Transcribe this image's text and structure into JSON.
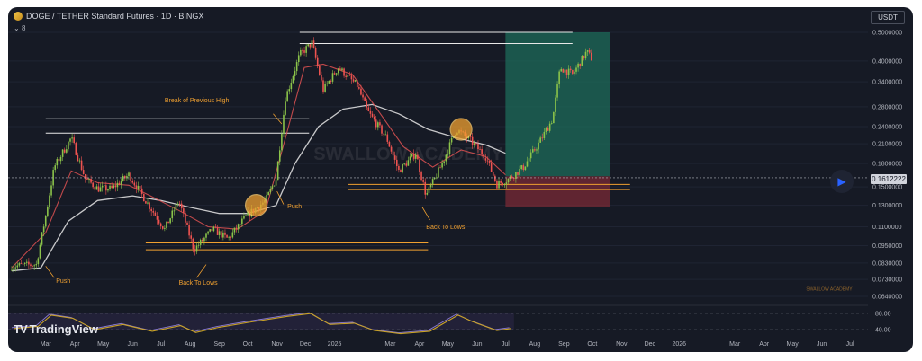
{
  "header": {
    "symbol_title": "DOGE / TETHER Standard Futures · 1D · BINGX",
    "indicator_toggle": "8"
  },
  "currency_button": "USDT",
  "current_price": "0.1612222",
  "watermark": "SWALLOW ACADEMY",
  "watermark_center": "SWALLOW ACADEMY",
  "logo_text": "TradingView",
  "chart_data": {
    "type": "line",
    "y_scale": "log",
    "price_axis_ticks": [
      "0.5000000",
      "0.4000000",
      "0.3400000",
      "0.2800000",
      "0.2400000",
      "0.2100000",
      "0.1800000",
      "0.1500000",
      "0.1300000",
      "0.1100000",
      "0.0950000",
      "0.0830000",
      "0.0730000",
      "0.0640000"
    ],
    "osc_axis_ticks": [
      "80.00",
      "40.00"
    ],
    "time_ticks": [
      {
        "label": "Mar",
        "d": "2024-03-01"
      },
      {
        "label": "Apr",
        "d": "2024-04-01"
      },
      {
        "label": "May",
        "d": "2024-05-01"
      },
      {
        "label": "Jun",
        "d": "2024-06-01"
      },
      {
        "label": "Jul",
        "d": "2024-07-01"
      },
      {
        "label": "Aug",
        "d": "2024-08-01"
      },
      {
        "label": "Sep",
        "d": "2024-09-01"
      },
      {
        "label": "Oct",
        "d": "2024-10-01"
      },
      {
        "label": "Nov",
        "d": "2024-11-01"
      },
      {
        "label": "Dec",
        "d": "2024-12-01"
      },
      {
        "label": "2025",
        "d": "2025-01-01"
      },
      {
        "label": "Mar",
        "d": "2025-03-01"
      },
      {
        "label": "Apr",
        "d": "2025-04-01"
      },
      {
        "label": "May",
        "d": "2025-05-01"
      },
      {
        "label": "Jun",
        "d": "2025-06-01"
      },
      {
        "label": "Jul",
        "d": "2025-07-01"
      },
      {
        "label": "Aug",
        "d": "2025-08-01"
      },
      {
        "label": "Sep",
        "d": "2025-09-01"
      },
      {
        "label": "Oct",
        "d": "2025-10-01"
      },
      {
        "label": "Nov",
        "d": "2025-11-01"
      },
      {
        "label": "Dec",
        "d": "2025-12-01"
      },
      {
        "label": "2026",
        "d": "2026-01-01"
      },
      {
        "label": "Mar",
        "d": "2026-03-01"
      },
      {
        "label": "Apr",
        "d": "2026-04-01"
      },
      {
        "label": "May",
        "d": "2026-05-01"
      },
      {
        "label": "Jun",
        "d": "2026-06-01"
      },
      {
        "label": "Jul",
        "d": "2026-07-01"
      }
    ],
    "price_path": [
      [
        "2024-01-25",
        0.081
      ],
      [
        "2024-02-20",
        0.082
      ],
      [
        "2024-03-01",
        0.12
      ],
      [
        "2024-03-10",
        0.175
      ],
      [
        "2024-03-28",
        0.22
      ],
      [
        "2024-04-12",
        0.16
      ],
      [
        "2024-04-25",
        0.148
      ],
      [
        "2024-05-10",
        0.148
      ],
      [
        "2024-05-28",
        0.165
      ],
      [
        "2024-06-15",
        0.135
      ],
      [
        "2024-07-05",
        0.108
      ],
      [
        "2024-07-20",
        0.135
      ],
      [
        "2024-08-05",
        0.092
      ],
      [
        "2024-08-25",
        0.108
      ],
      [
        "2024-09-10",
        0.1
      ],
      [
        "2024-09-30",
        0.12
      ],
      [
        "2024-10-20",
        0.135
      ],
      [
        "2024-10-31",
        0.16
      ],
      [
        "2024-11-10",
        0.3
      ],
      [
        "2024-11-25",
        0.42
      ],
      [
        "2024-12-08",
        0.46
      ],
      [
        "2024-12-20",
        0.32
      ],
      [
        "2025-01-05",
        0.38
      ],
      [
        "2025-01-25",
        0.33
      ],
      [
        "2025-02-05",
        0.27
      ],
      [
        "2025-02-25",
        0.22
      ],
      [
        "2025-03-10",
        0.17
      ],
      [
        "2025-03-28",
        0.195
      ],
      [
        "2025-04-08",
        0.14
      ],
      [
        "2025-04-25",
        0.18
      ],
      [
        "2025-05-10",
        0.235
      ],
      [
        "2025-05-25",
        0.215
      ],
      [
        "2025-06-10",
        0.19
      ],
      [
        "2025-06-22",
        0.153
      ],
      [
        "2025-07-05",
        0.16
      ],
      [
        "2025-07-20",
        0.175
      ],
      [
        "2025-08-05",
        0.21
      ],
      [
        "2025-08-20",
        0.255
      ],
      [
        "2025-08-28",
        0.38
      ],
      [
        "2025-09-10",
        0.36
      ],
      [
        "2025-09-25",
        0.43
      ],
      [
        "2025-10-01",
        0.405
      ]
    ],
    "ma_fast": [
      [
        "2024-01-25",
        0.08
      ],
      [
        "2024-03-01",
        0.105
      ],
      [
        "2024-03-28",
        0.17
      ],
      [
        "2024-04-25",
        0.155
      ],
      [
        "2024-05-28",
        0.152
      ],
      [
        "2024-06-20",
        0.14
      ],
      [
        "2024-07-20",
        0.125
      ],
      [
        "2024-08-20",
        0.11
      ],
      [
        "2024-09-20",
        0.108
      ],
      [
        "2024-10-20",
        0.125
      ],
      [
        "2024-11-10",
        0.22
      ],
      [
        "2024-11-30",
        0.38
      ],
      [
        "2024-12-20",
        0.39
      ],
      [
        "2025-01-20",
        0.36
      ],
      [
        "2025-02-15",
        0.275
      ],
      [
        "2025-03-15",
        0.205
      ],
      [
        "2025-04-15",
        0.175
      ],
      [
        "2025-05-15",
        0.2
      ],
      [
        "2025-06-10",
        0.19
      ],
      [
        "2025-07-01",
        0.165
      ]
    ],
    "ma_slow": [
      [
        "2024-01-25",
        0.078
      ],
      [
        "2024-02-25",
        0.08
      ],
      [
        "2024-03-25",
        0.115
      ],
      [
        "2024-04-25",
        0.135
      ],
      [
        "2024-06-01",
        0.14
      ],
      [
        "2024-07-01",
        0.135
      ],
      [
        "2024-08-01",
        0.128
      ],
      [
        "2024-09-01",
        0.122
      ],
      [
        "2024-10-01",
        0.122
      ],
      [
        "2024-10-31",
        0.13
      ],
      [
        "2024-11-20",
        0.18
      ],
      [
        "2024-12-15",
        0.24
      ],
      [
        "2025-01-10",
        0.275
      ],
      [
        "2025-02-10",
        0.285
      ],
      [
        "2025-03-10",
        0.265
      ],
      [
        "2025-04-10",
        0.235
      ],
      [
        "2025-05-10",
        0.22
      ],
      [
        "2025-06-10",
        0.208
      ],
      [
        "2025-07-01",
        0.195
      ]
    ],
    "oscillator": [
      [
        "2024-01-25",
        45
      ],
      [
        "2024-02-20",
        50
      ],
      [
        "2024-03-05",
        78
      ],
      [
        "2024-03-28",
        70
      ],
      [
        "2024-04-20",
        42
      ],
      [
        "2024-05-20",
        55
      ],
      [
        "2024-06-20",
        38
      ],
      [
        "2024-07-20",
        52
      ],
      [
        "2024-08-05",
        35
      ],
      [
        "2024-08-30",
        48
      ],
      [
        "2024-09-30",
        60
      ],
      [
        "2024-11-10",
        75
      ],
      [
        "2024-12-05",
        82
      ],
      [
        "2024-12-25",
        55
      ],
      [
        "2025-01-20",
        58
      ],
      [
        "2025-02-10",
        40
      ],
      [
        "2025-03-10",
        32
      ],
      [
        "2025-04-10",
        38
      ],
      [
        "2025-05-10",
        78
      ],
      [
        "2025-05-25",
        62
      ],
      [
        "2025-06-20",
        40
      ],
      [
        "2025-07-05",
        45
      ]
    ],
    "resistance_lines": [
      {
        "y": 0.255,
        "from": "2024-03-01",
        "to": "2024-12-05"
      },
      {
        "y": 0.228,
        "from": "2024-03-01",
        "to": "2024-12-05"
      },
      {
        "y": 0.5,
        "from": "2024-11-25",
        "to": "2025-09-10"
      },
      {
        "y": 0.458,
        "from": "2024-11-25",
        "to": "2025-09-10"
      }
    ],
    "support_lines": [
      {
        "y": 0.097,
        "from": "2024-06-15",
        "to": "2025-04-10"
      },
      {
        "y": 0.092,
        "from": "2024-06-15",
        "to": "2025-04-10"
      },
      {
        "y": 0.153,
        "from": "2025-01-15",
        "to": "2025-11-10"
      },
      {
        "y": 0.147,
        "from": "2025-01-15",
        "to": "2025-11-10"
      }
    ],
    "position": {
      "from": "2025-07-01",
      "to": "2025-10-20",
      "entry": 0.163,
      "target": 0.5,
      "stop": 0.128
    },
    "circles": [
      {
        "d": "2024-10-10",
        "y": 0.13
      },
      {
        "d": "2025-05-15",
        "y": 0.235
      }
    ],
    "annotations": [
      {
        "text": "Break of Previous High",
        "d": "2024-07-05",
        "y": 0.29
      },
      {
        "text": "Push",
        "d": "2024-11-12",
        "y": 0.127
      },
      {
        "text": "Back To Lows",
        "d": "2025-04-08",
        "y": 0.108
      },
      {
        "text": "Push",
        "d": "2024-03-12",
        "y": 0.071
      },
      {
        "text": "Back To Lows",
        "d": "2024-07-20",
        "y": 0.07
      }
    ]
  },
  "colors": {
    "bg": "#161a25",
    "candle_up": "#8bc34a",
    "candle_down": "#ef5350",
    "ma_fast": "#e05252",
    "ma_slow": "#e8e8e8",
    "orange": "#f0a030",
    "target_zone": "#1e6b5a",
    "stop_zone": "#7a2a35",
    "osc_line": "#c9a227",
    "osc_signal": "#9c8bf0"
  }
}
